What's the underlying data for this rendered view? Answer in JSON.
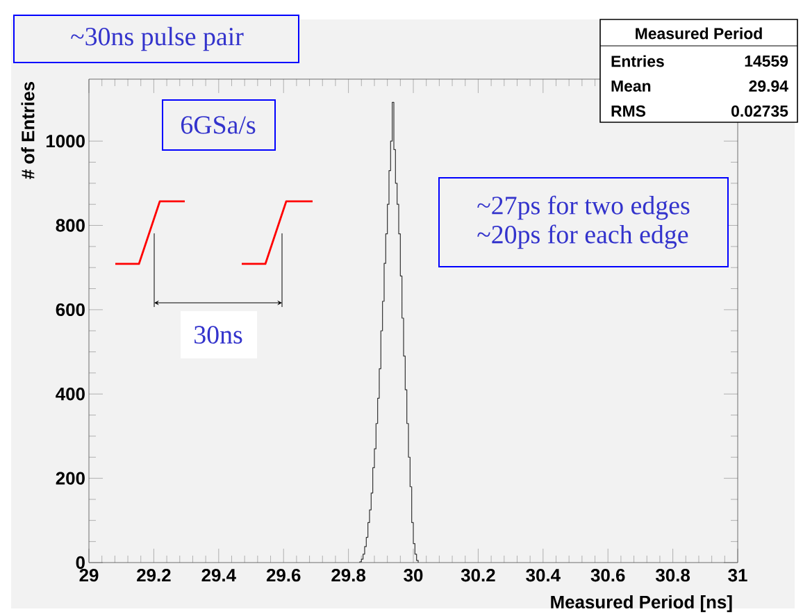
{
  "chart_data": {
    "type": "histogram",
    "xlabel": "Measured Period [ns]",
    "ylabel": "# of Entries",
    "bins": [
      29.835,
      29.84,
      29.845,
      29.85,
      29.855,
      29.86,
      29.865,
      29.87,
      29.875,
      29.88,
      29.885,
      29.89,
      29.895,
      29.9,
      29.905,
      29.91,
      29.915,
      29.92,
      29.925,
      29.93,
      29.935,
      29.94,
      29.945,
      29.95,
      29.955,
      29.96,
      29.965,
      29.97,
      29.975,
      29.98,
      29.985,
      29.99,
      29.995,
      30,
      30.005,
      30.01,
      30.015
    ],
    "values": [
      2,
      8,
      20,
      38,
      60,
      95,
      125,
      165,
      225,
      270,
      330,
      390,
      460,
      550,
      620,
      710,
      780,
      850,
      930,
      1000,
      1092,
      980,
      900,
      850,
      780,
      680,
      580,
      490,
      410,
      330,
      250,
      180,
      95,
      45,
      20,
      5
    ],
    "color": "#333333",
    "xlim": [
      29,
      31
    ],
    "ylim": [
      0,
      1147
    ],
    "xticks": [
      29,
      29.2,
      29.4,
      29.6,
      29.8,
      30,
      30.2,
      30.4,
      30.6,
      30.8,
      31
    ],
    "yticks": [
      0,
      200,
      400,
      600,
      800,
      1000
    ],
    "annotations": [
      "~30ns pulse pair",
      "6GSa/s",
      "~27ps for two edges",
      "~20ps for each edge",
      "30ns",
      "Measured Period",
      "Entries",
      "14559",
      "Mean",
      "29.94",
      "RMS",
      "0.02735"
    ]
  }
}
